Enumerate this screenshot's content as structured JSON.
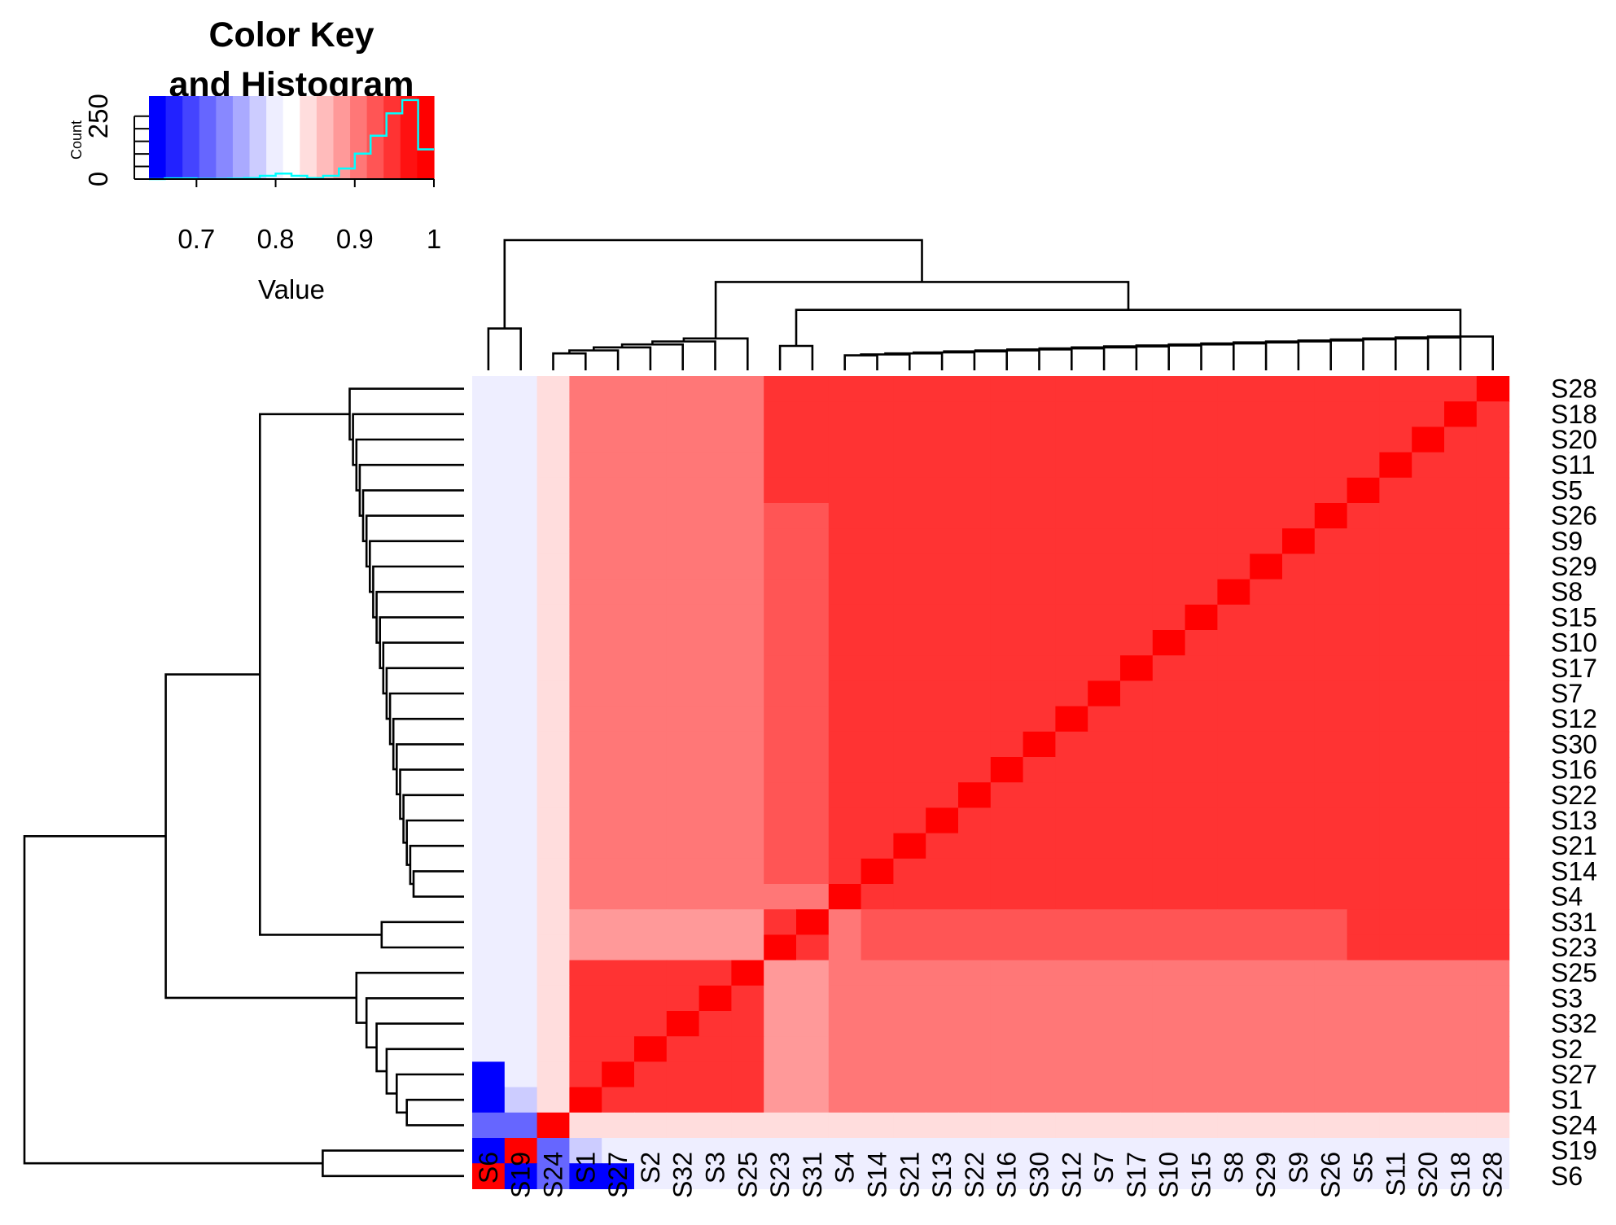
{
  "chart_data": {
    "type": "heatmap",
    "title": "",
    "xlabel": "",
    "ylabel": "",
    "labels": [
      "S6",
      "S19",
      "S24",
      "S1",
      "S27",
      "S2",
      "S32",
      "S3",
      "S25",
      "S23",
      "S31",
      "S4",
      "S14",
      "S21",
      "S13",
      "S22",
      "S16",
      "S30",
      "S12",
      "S7",
      "S17",
      "S10",
      "S15",
      "S8",
      "S29",
      "S9",
      "S26",
      "S5",
      "S11",
      "S20",
      "S18",
      "S28"
    ],
    "value_range": [
      0.64,
      1.0
    ],
    "color_scale": {
      "colors": [
        "#0000ff",
        "#2222ff",
        "#4444ff",
        "#6666ff",
        "#8888ff",
        "#aaaaff",
        "#ccccff",
        "#eeeeff",
        "#ffffff",
        "#ffdddd",
        "#ffbbbb",
        "#ff9999",
        "#ff7777",
        "#ff5555",
        "#ff3333",
        "#ff1111",
        "#ff0000"
      ],
      "low_color": "#0000ff",
      "mid_color": "#ffffff",
      "high_color": "#ff0000"
    },
    "color_key": {
      "title_line1": "Color Key",
      "title_line2": "and Histogram",
      "xlabel": "Value",
      "ylabel": "Count",
      "x_ticks": [
        "0.7",
        "0.8",
        "0.9",
        "1"
      ],
      "x_tick_values": [
        0.7,
        0.8,
        0.9,
        1.0
      ],
      "y_ticks": [
        "0",
        "250"
      ],
      "y_tick_values": [
        0,
        250
      ],
      "y_max": 330,
      "histogram_color": "#00ffff",
      "histogram": [
        {
          "x": 0.64,
          "count": 0
        },
        {
          "x": 0.66,
          "count": 3
        },
        {
          "x": 0.68,
          "count": 3
        },
        {
          "x": 0.7,
          "count": 1
        },
        {
          "x": 0.72,
          "count": 1
        },
        {
          "x": 0.74,
          "count": 2
        },
        {
          "x": 0.76,
          "count": 4
        },
        {
          "x": 0.78,
          "count": 13
        },
        {
          "x": 0.8,
          "count": 22
        },
        {
          "x": 0.82,
          "count": 13
        },
        {
          "x": 0.84,
          "count": 4
        },
        {
          "x": 0.86,
          "count": 13
        },
        {
          "x": 0.88,
          "count": 42
        },
        {
          "x": 0.9,
          "count": 101
        },
        {
          "x": 0.92,
          "count": 172
        },
        {
          "x": 0.94,
          "count": 261
        },
        {
          "x": 0.96,
          "count": 314
        },
        {
          "x": 0.98,
          "count": 118
        },
        {
          "x": 1.0,
          "count": 118
        }
      ]
    },
    "row_groups": [
      0,
      0,
      1,
      2,
      2,
      2,
      2,
      2,
      2,
      3,
      3,
      4,
      4,
      4,
      4,
      4,
      4,
      4,
      4,
      4,
      4,
      4,
      4,
      4,
      4,
      4,
      4,
      4,
      4,
      4,
      4,
      4
    ],
    "clusters": [
      [
        0
      ],
      [
        1
      ],
      [
        2,
        3,
        4,
        5,
        6,
        7,
        8
      ],
      [
        9,
        10
      ],
      [
        11,
        12,
        13,
        14,
        15,
        16,
        17,
        18,
        19,
        20,
        21,
        22,
        23,
        24,
        25,
        26,
        27,
        28,
        29,
        30,
        31
      ]
    ],
    "special_values": {
      "S6-S19": 0.64,
      "S6-S24": 0.7,
      "S6-S1": 0.64,
      "S6-S27": 0.64,
      "S19-S24": 0.7,
      "S19-S1": 0.78,
      "S19-S27": 0.8
    }
  }
}
